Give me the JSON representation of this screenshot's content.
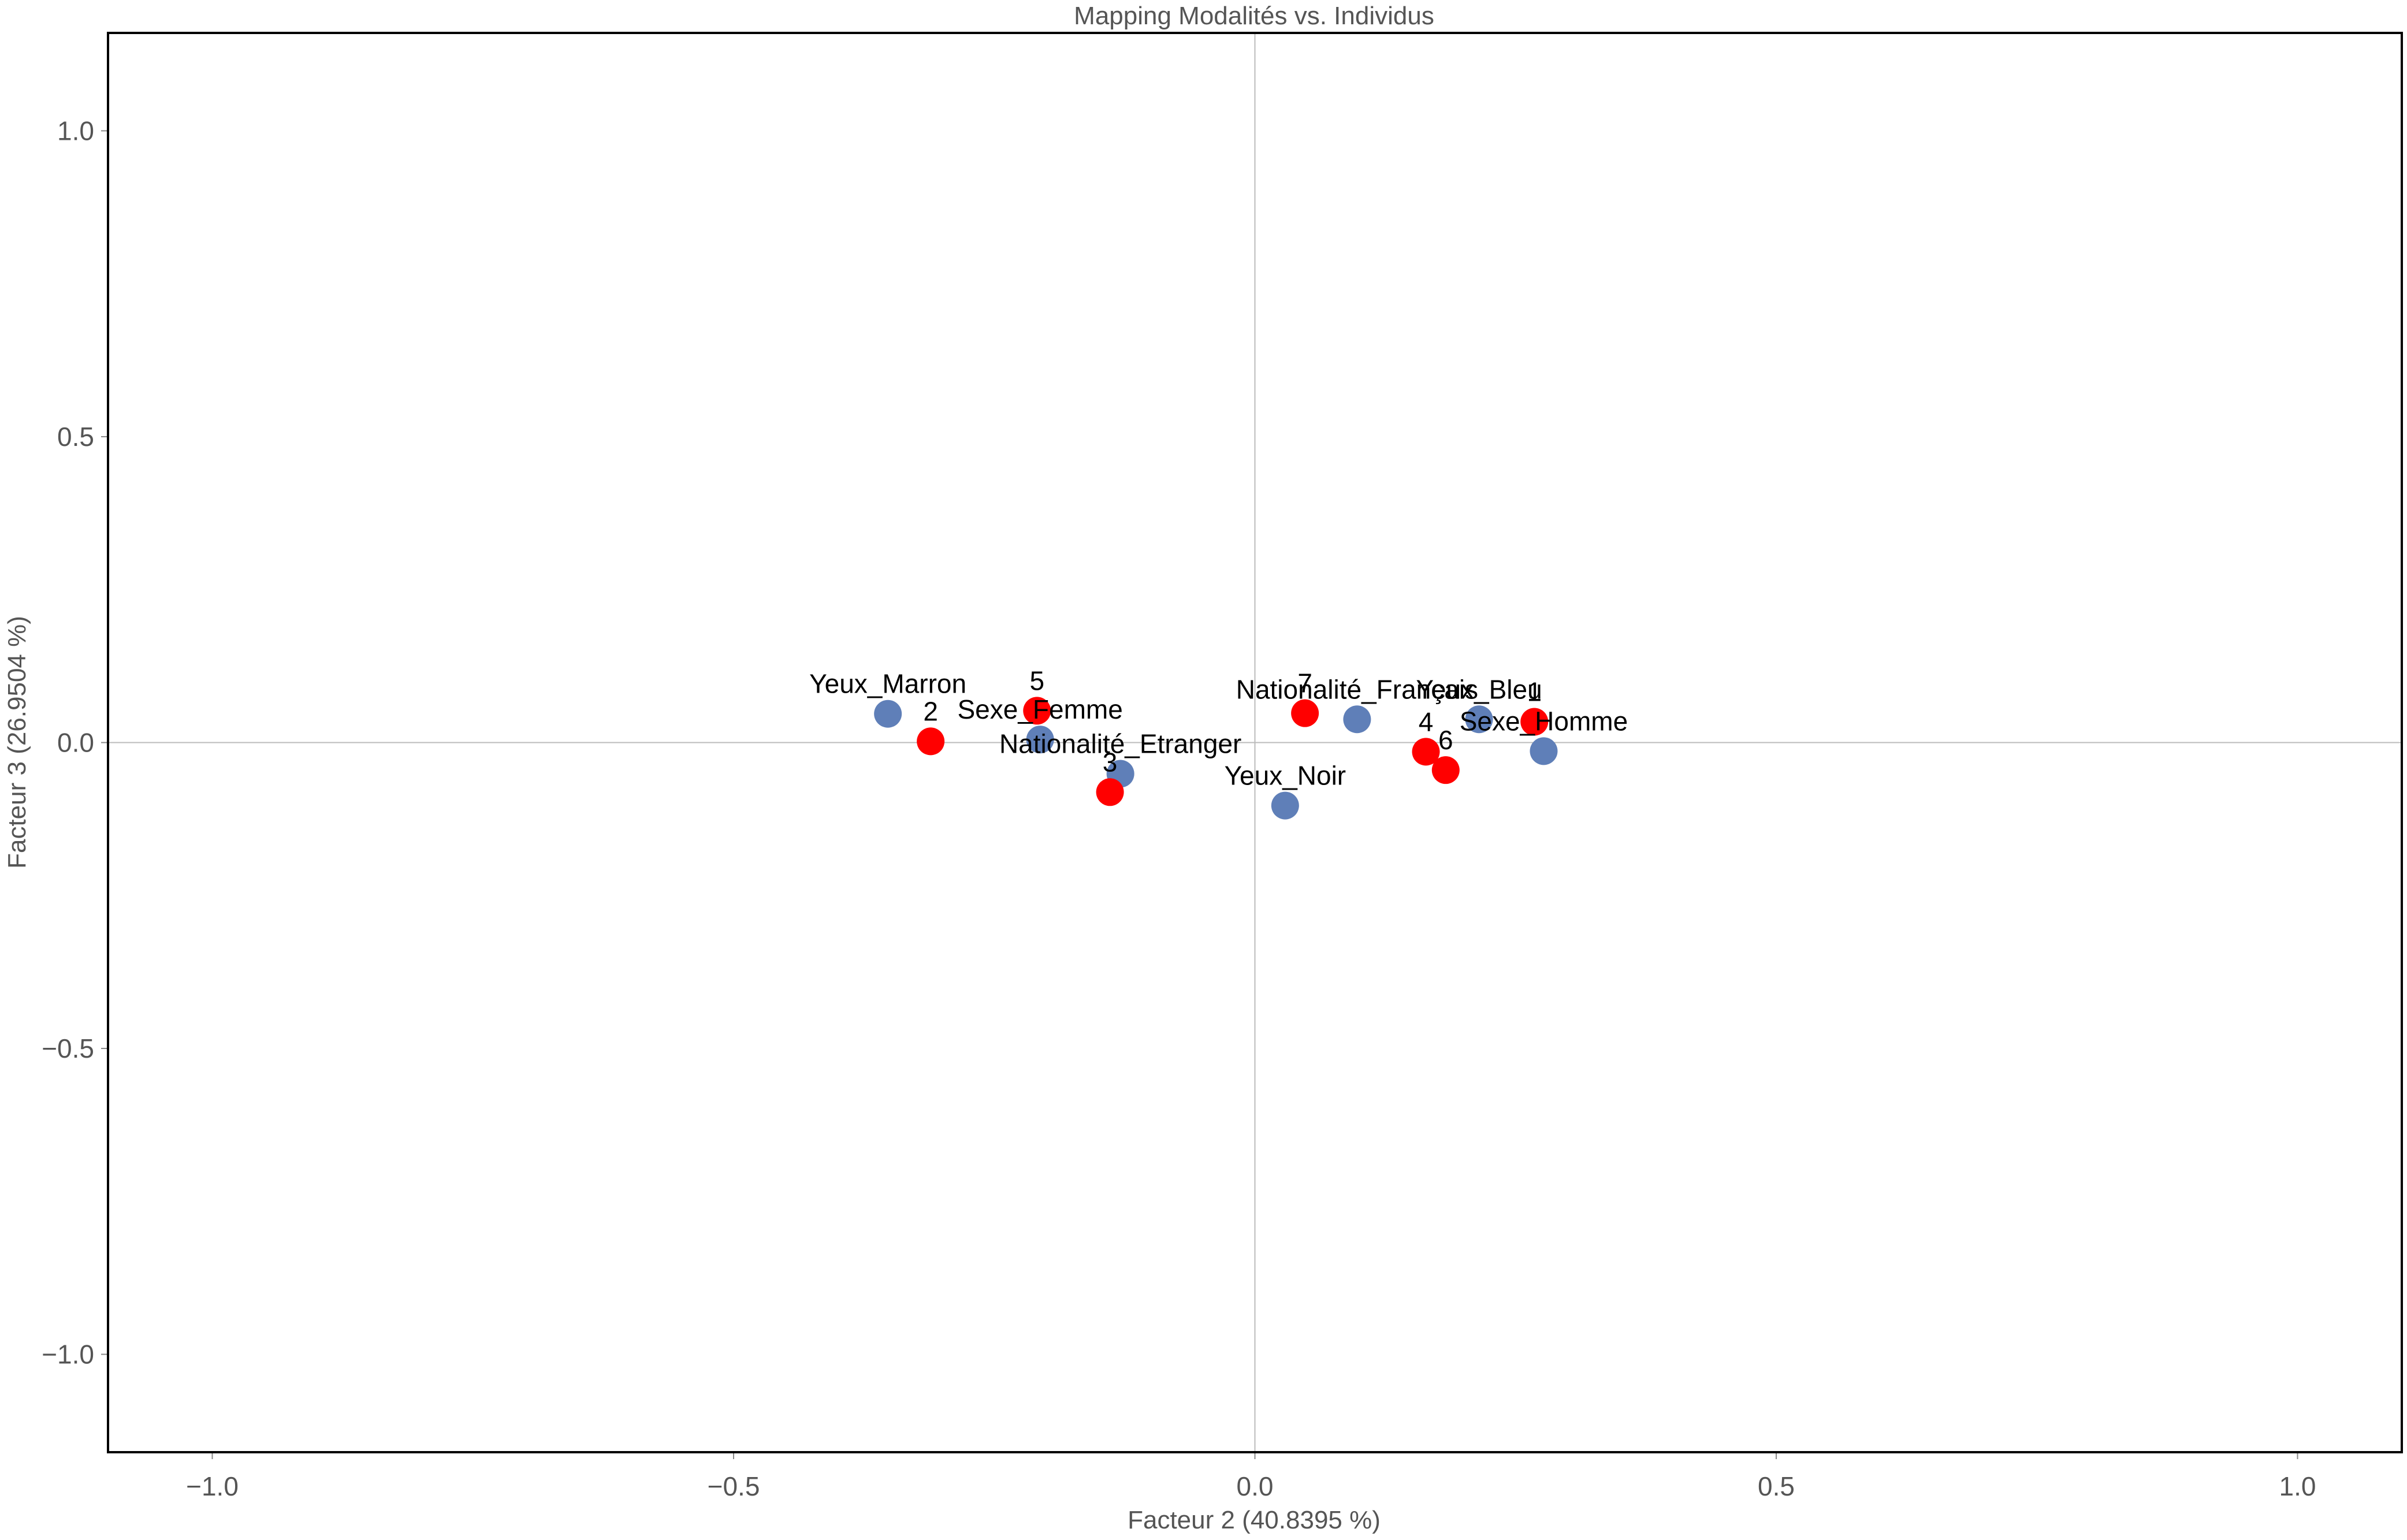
{
  "chart_data": {
    "type": "scatter",
    "title": "Mapping Modalités vs. Individus",
    "xlabel": "Facteur 2 (40.8395 %)",
    "ylabel": "Facteur 3 (26.9504 %)",
    "xlim": [
      -1.1,
      1.1
    ],
    "ylim": [
      -1.16,
      1.16
    ],
    "xticks": [
      -1.0,
      -0.5,
      0.0,
      0.5,
      1.0
    ],
    "xtick_labels": [
      "−1.0",
      "−0.5",
      "0.0",
      "0.5",
      "1.0"
    ],
    "yticks": [
      1.0,
      0.5,
      0.0,
      -0.5,
      -1.0
    ],
    "ytick_labels": [
      "1.0",
      "0.5",
      "0.0",
      "−0.5",
      "−1.0"
    ],
    "grid": false,
    "zero_lines": true,
    "series": [
      {
        "color": "#5f7fb8",
        "points": [
          {
            "label": "Yeux_Marron",
            "x": -0.352,
            "y": 0.047
          },
          {
            "label": "Sexe_Femme",
            "x": -0.206,
            "y": 0.005
          },
          {
            "label": "Nationalité_Etranger",
            "x": -0.129,
            "y": -0.051
          },
          {
            "label": "Yeux_Noir",
            "x": 0.029,
            "y": -0.103
          },
          {
            "label": "Nationalité_Français",
            "x": 0.098,
            "y": 0.038
          },
          {
            "label": "Yeux_Bleu",
            "x": 0.215,
            "y": 0.038
          },
          {
            "label": "Sexe_Homme",
            "x": 0.277,
            "y": -0.014
          }
        ]
      },
      {
        "color": "#ff0000",
        "points": [
          {
            "label": "2",
            "x": -0.311,
            "y": 0.002
          },
          {
            "label": "5",
            "x": -0.209,
            "y": 0.052
          },
          {
            "label": "3",
            "x": -0.139,
            "y": -0.081
          },
          {
            "label": "7",
            "x": 0.048,
            "y": 0.048
          },
          {
            "label": "4",
            "x": 0.164,
            "y": -0.015
          },
          {
            "label": "6",
            "x": 0.183,
            "y": -0.045
          },
          {
            "label": "1",
            "x": 0.268,
            "y": 0.034
          }
        ]
      }
    ]
  }
}
